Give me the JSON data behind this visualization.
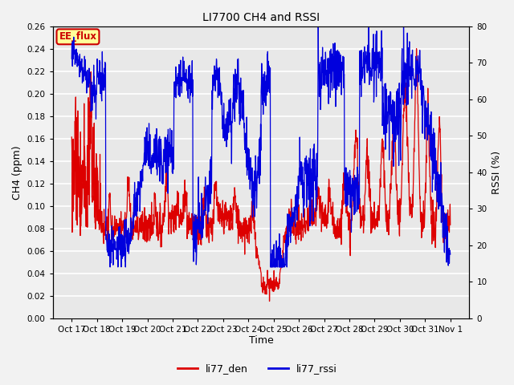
{
  "title": "LI7700 CH4 and RSSI",
  "xlabel": "Time",
  "ylabel_left": "CH4 (ppm)",
  "ylabel_right": "RSSI (%)",
  "ylim_left": [
    0.0,
    0.26
  ],
  "ylim_right": [
    0,
    80
  ],
  "yticks_left": [
    0.0,
    0.02,
    0.04,
    0.06,
    0.08,
    0.1,
    0.12,
    0.14,
    0.16,
    0.18,
    0.2,
    0.22,
    0.24,
    0.26
  ],
  "yticks_right": [
    0,
    10,
    20,
    30,
    40,
    50,
    60,
    70,
    80
  ],
  "xtick_labels": [
    "Oct 17",
    "Oct 18",
    "Oct 19",
    "Oct 20",
    "Oct 21",
    "Oct 22",
    "Oct 23",
    "Oct 24",
    "Oct 25",
    "Oct 26",
    "Oct 27",
    "Oct 28",
    "Oct 29",
    "Oct 30",
    "Oct 31",
    "Nov 1"
  ],
  "color_den": "#dd0000",
  "color_rssi": "#0000dd",
  "annotation_text": "EE_flux",
  "annotation_bg": "#ffff99",
  "annotation_border": "#cc0000",
  "legend_items": [
    "li77_den",
    "li77_rssi"
  ],
  "legend_colors": [
    "#dd0000",
    "#0000dd"
  ],
  "plot_bg": "#e8e8e8",
  "grid_color": "#ffffff",
  "fig_bg": "#f2f2f2",
  "n_points": 1500
}
